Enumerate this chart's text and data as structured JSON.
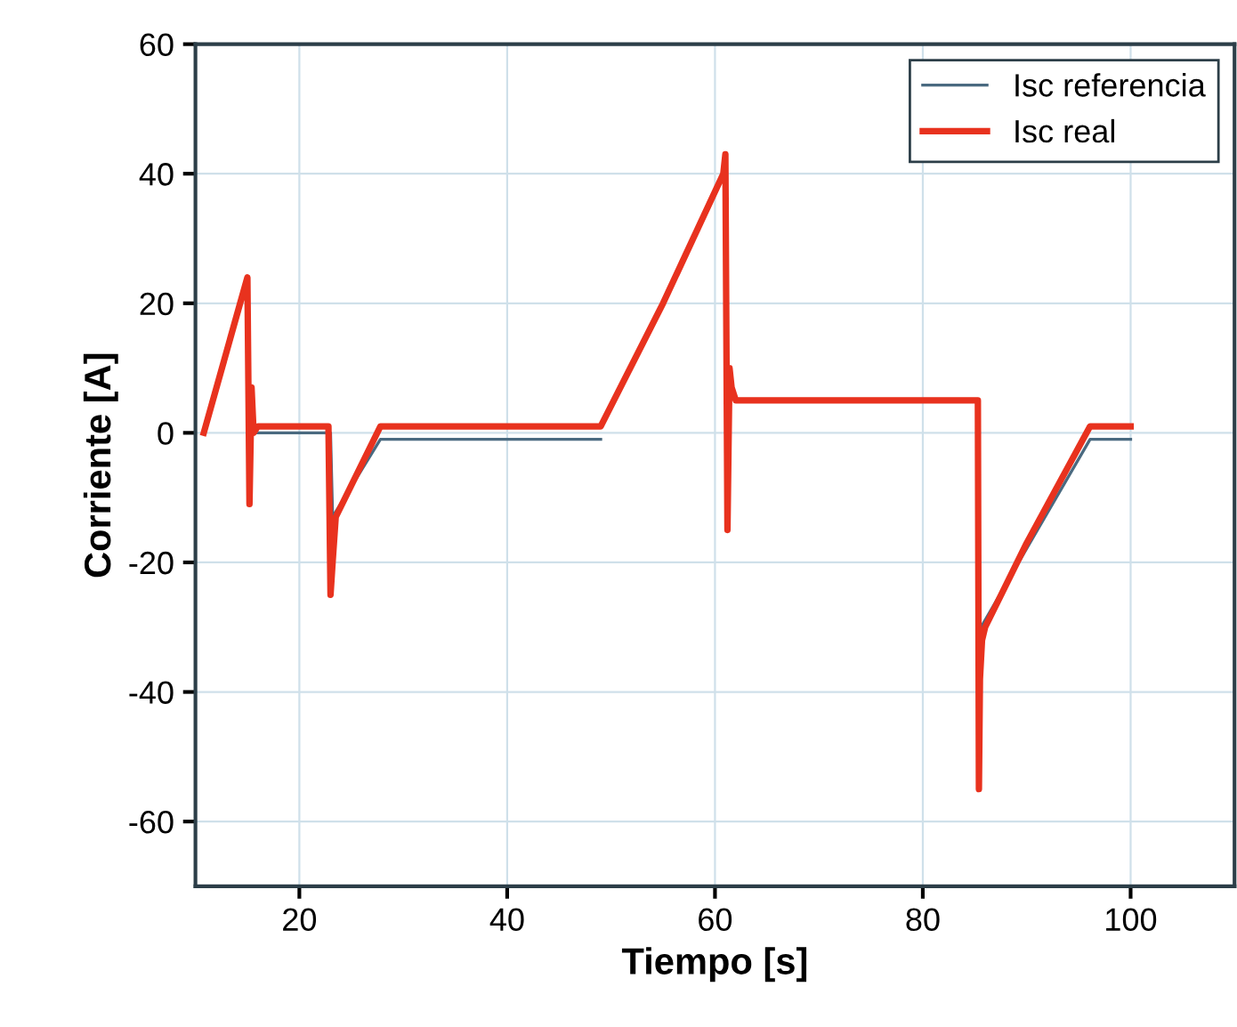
{
  "chart_data": {
    "type": "line",
    "xlabel": "Tiempo [s]",
    "ylabel": "Corriente [A]",
    "xlim": [
      10,
      110
    ],
    "xticks": [
      20,
      40,
      60,
      80,
      100
    ],
    "ylim": [
      -70,
      60
    ],
    "yticks": [
      -60,
      -40,
      -20,
      0,
      20,
      40,
      60
    ],
    "grid": true,
    "legend": "top right",
    "line_style": "solid",
    "marker": "none",
    "series": [
      {
        "name": "Isc referencia",
        "color": "#4a6a80",
        "x": [
          15.2,
          23,
          23.2,
          27.8,
          49,
          60.8,
          85.6,
          96.1,
          100
        ],
        "values": [
          0,
          0,
          -13,
          -1,
          -1,
          null,
          -30,
          -1,
          -1
        ]
      },
      {
        "name": "Isc real",
        "color": "#e8321e",
        "x": [
          10.8,
          15,
          15.2,
          15.4,
          15.6,
          16,
          22.8,
          23,
          23.2,
          23.5,
          27.8,
          49,
          55,
          60.8,
          61,
          61.2,
          61.4,
          61.6,
          62,
          70,
          85.3,
          85.4,
          85.5,
          85.7,
          86,
          90,
          96.1,
          100
        ],
        "values": [
          0,
          24,
          -11,
          7,
          0,
          1,
          1,
          -25,
          -20,
          -13,
          1,
          1,
          20,
          40,
          43,
          -15,
          10,
          7,
          5,
          5,
          5,
          -55,
          -38,
          -32,
          -30,
          -17,
          1,
          1
        ]
      }
    ]
  }
}
